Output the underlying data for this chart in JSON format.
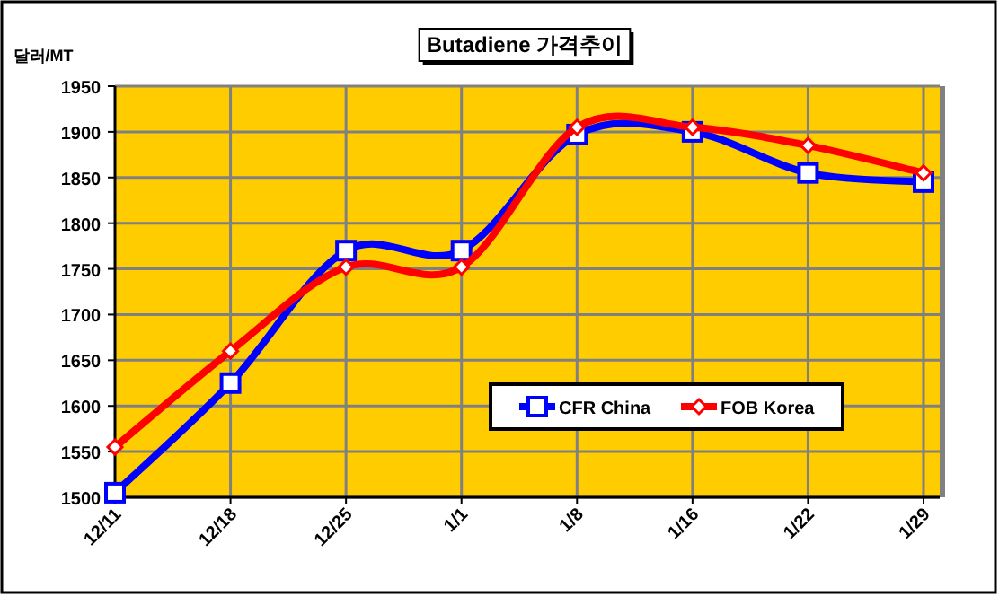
{
  "chart_data": {
    "type": "line",
    "title": "Butadiene 가격추이",
    "ylabel": "달러/MT",
    "categories": [
      "12/11",
      "12/18",
      "12/25",
      "1/1",
      "1/8",
      "1/16",
      "1/22",
      "1/29"
    ],
    "series": [
      {
        "name": "CFR China",
        "color": "#0000ff",
        "marker": "square",
        "values": [
          1505,
          1625,
          1770,
          1770,
          1897,
          1900,
          1855,
          1845
        ]
      },
      {
        "name": "FOB Korea",
        "color": "#ff0000",
        "marker": "diamond",
        "values": [
          1555,
          1660,
          1752,
          1752,
          1905,
          1905,
          1885,
          1855
        ]
      }
    ],
    "ylim": [
      1500,
      1950
    ],
    "yticks": [
      1500,
      1550,
      1600,
      1650,
      1700,
      1750,
      1800,
      1850,
      1900,
      1950
    ],
    "grid": true,
    "legend": "bottom right"
  }
}
